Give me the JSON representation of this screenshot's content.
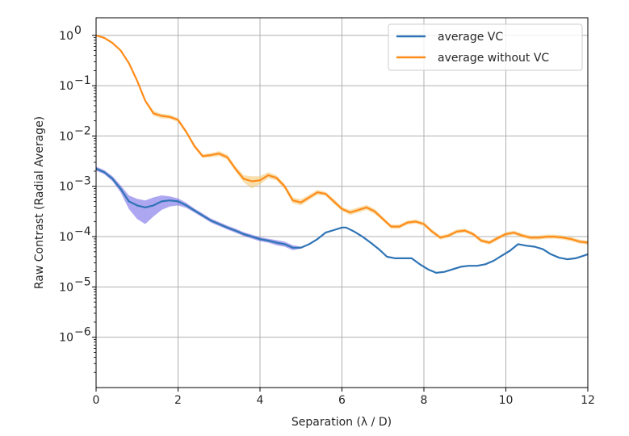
{
  "chart_data": {
    "type": "line",
    "title": "",
    "xlabel": "Separation (λ / D)",
    "ylabel": "Raw Contrast (Radial Average)",
    "xlim": [
      0,
      12
    ],
    "ylim_log10": [
      -7.0,
      0.35
    ],
    "yscale": "log",
    "grid": true,
    "legend_position": "top-right",
    "x_ticks": [
      0,
      2,
      4,
      6,
      8,
      10,
      12
    ],
    "x_tick_labels": [
      "0",
      "2",
      "4",
      "6",
      "8",
      "10",
      "12"
    ],
    "y_ticks_log10": [
      0,
      -1,
      -2,
      -3,
      -4,
      -5,
      -6
    ],
    "y_tick_labels": [
      {
        "base": "10",
        "exp": "0"
      },
      {
        "base": "10",
        "exp": "−1"
      },
      {
        "base": "10",
        "exp": "−2"
      },
      {
        "base": "10",
        "exp": "−3"
      },
      {
        "base": "10",
        "exp": "−4"
      },
      {
        "base": "10",
        "exp": "−5"
      },
      {
        "base": "10",
        "exp": "−6"
      }
    ],
    "series": [
      {
        "name": "average VC",
        "color": "#2f74b5",
        "band_color": "#6a5fe6",
        "x": [
          0,
          0.2,
          0.4,
          0.6,
          0.8,
          1.0,
          1.2,
          1.4,
          1.6,
          1.8,
          2.0,
          2.2,
          2.4,
          2.6,
          2.8,
          3.0,
          3.2,
          3.4,
          3.6,
          3.8,
          4.0,
          4.2,
          4.4,
          4.6,
          4.8,
          5.0,
          5.2,
          5.4,
          5.6,
          5.8,
          6.0,
          6.1,
          6.3,
          6.5,
          6.7,
          6.9,
          7.1,
          7.3,
          7.5,
          7.7,
          7.9,
          8.1,
          8.3,
          8.5,
          8.7,
          8.9,
          9.1,
          9.3,
          9.5,
          9.7,
          9.9,
          10.1,
          10.3,
          10.5,
          10.7,
          10.9,
          11.1,
          11.3,
          11.5,
          11.7,
          11.9,
          12.0
        ],
        "log10_values": [
          -2.65,
          -2.72,
          -2.85,
          -3.05,
          -3.3,
          -3.38,
          -3.42,
          -3.38,
          -3.3,
          -3.28,
          -3.3,
          -3.38,
          -3.48,
          -3.58,
          -3.68,
          -3.75,
          -3.82,
          -3.88,
          -3.95,
          -4.0,
          -4.05,
          -4.08,
          -4.12,
          -4.15,
          -4.22,
          -4.22,
          -4.15,
          -4.05,
          -3.92,
          -3.87,
          -3.82,
          -3.82,
          -3.9,
          -4.0,
          -4.12,
          -4.25,
          -4.4,
          -4.43,
          -4.43,
          -4.43,
          -4.55,
          -4.65,
          -4.72,
          -4.7,
          -4.65,
          -4.6,
          -4.58,
          -4.58,
          -4.55,
          -4.48,
          -4.38,
          -4.28,
          -4.15,
          -4.18,
          -4.2,
          -4.25,
          -4.35,
          -4.42,
          -4.45,
          -4.43,
          -4.38,
          -4.35
        ],
        "band_low_log10": [
          -2.69,
          -2.76,
          -2.9,
          -3.12,
          -3.45,
          -3.65,
          -3.75,
          -3.6,
          -3.47,
          -3.4,
          -3.38,
          -3.43,
          -3.52,
          -3.62,
          -3.72,
          -3.79,
          -3.86,
          -3.92,
          -3.99,
          -4.04,
          -4.09,
          -4.12,
          -4.17,
          -4.2,
          -4.27,
          -4.24
        ],
        "band_high_log10": [
          -2.61,
          -2.68,
          -2.8,
          -2.98,
          -3.18,
          -3.25,
          -3.28,
          -3.22,
          -3.18,
          -3.2,
          -3.24,
          -3.33,
          -3.44,
          -3.54,
          -3.64,
          -3.71,
          -3.78,
          -3.84,
          -3.91,
          -3.96,
          -4.01,
          -4.04,
          -4.07,
          -4.1,
          -4.17,
          -4.2
        ]
      },
      {
        "name": "average without VC",
        "color": "#ff8c1a",
        "band_color": "#f3c46b",
        "x": [
          0,
          0.2,
          0.4,
          0.6,
          0.8,
          1.0,
          1.2,
          1.4,
          1.6,
          1.8,
          2.0,
          2.2,
          2.4,
          2.6,
          2.8,
          3.0,
          3.2,
          3.4,
          3.6,
          3.8,
          4.0,
          4.2,
          4.4,
          4.6,
          4.8,
          5.0,
          5.2,
          5.4,
          5.6,
          5.8,
          6.0,
          6.2,
          6.4,
          6.6,
          6.8,
          7.0,
          7.2,
          7.4,
          7.6,
          7.8,
          8.0,
          8.2,
          8.4,
          8.6,
          8.8,
          9.0,
          9.2,
          9.4,
          9.6,
          9.8,
          10.0,
          10.2,
          10.4,
          10.6,
          10.8,
          11.0,
          11.2,
          11.4,
          11.6,
          11.8,
          12.0
        ],
        "log10_values": [
          0.0,
          -0.05,
          -0.15,
          -0.3,
          -0.55,
          -0.9,
          -1.3,
          -1.55,
          -1.6,
          -1.62,
          -1.68,
          -1.92,
          -2.2,
          -2.4,
          -2.38,
          -2.35,
          -2.42,
          -2.65,
          -2.85,
          -2.9,
          -2.88,
          -2.78,
          -2.83,
          -3.0,
          -3.28,
          -3.32,
          -3.22,
          -3.12,
          -3.15,
          -3.3,
          -3.45,
          -3.52,
          -3.47,
          -3.42,
          -3.5,
          -3.65,
          -3.8,
          -3.8,
          -3.72,
          -3.7,
          -3.75,
          -3.9,
          -4.02,
          -3.98,
          -3.9,
          -3.88,
          -3.95,
          -4.08,
          -4.12,
          -4.03,
          -3.95,
          -3.92,
          -3.98,
          -4.02,
          -4.02,
          -4.0,
          -4.0,
          -4.02,
          -4.05,
          -4.1,
          -4.12
        ],
        "band_low_log10": [
          -0.02,
          -0.07,
          -0.17,
          -0.32,
          -0.58,
          -0.93,
          -1.33,
          -1.6,
          -1.65,
          -1.66,
          -1.72,
          -1.96,
          -2.24,
          -2.44,
          -2.42,
          -2.4,
          -2.47,
          -2.7,
          -2.92,
          -3.04,
          -2.96,
          -2.84,
          -2.88,
          -3.05,
          -3.34,
          -3.38,
          -3.27,
          -3.17,
          -3.19,
          -3.35,
          -3.49,
          -3.57,
          -3.52,
          -3.47,
          -3.55,
          -3.69,
          -3.84,
          -3.84,
          -3.76,
          -3.74,
          -3.79,
          -3.94,
          -4.06,
          -4.02,
          -3.94,
          -3.92,
          -3.99,
          -4.12,
          -4.16,
          -4.07,
          -3.99,
          -3.96,
          -4.02,
          -4.06,
          -4.06,
          -4.04,
          -4.04,
          -4.06,
          -4.09,
          -4.14,
          -4.16
        ],
        "band_high_log10": [
          0.02,
          -0.03,
          -0.13,
          -0.28,
          -0.52,
          -0.87,
          -1.27,
          -1.5,
          -1.56,
          -1.58,
          -1.64,
          -1.88,
          -2.16,
          -2.36,
          -2.34,
          -2.3,
          -2.37,
          -2.6,
          -2.78,
          -2.8,
          -2.8,
          -2.72,
          -2.78,
          -2.95,
          -3.22,
          -3.26,
          -3.17,
          -3.07,
          -3.11,
          -3.25,
          -3.41,
          -3.47,
          -3.42,
          -3.37,
          -3.45,
          -3.61,
          -3.76,
          -3.76,
          -3.68,
          -3.66,
          -3.71,
          -3.86,
          -3.98,
          -3.94,
          -3.86,
          -3.84,
          -3.91,
          -4.04,
          -4.08,
          -3.99,
          -3.91,
          -3.88,
          -3.94,
          -3.98,
          -3.98,
          -3.96,
          -3.96,
          -3.98,
          -4.01,
          -4.06,
          -4.08
        ]
      }
    ]
  }
}
